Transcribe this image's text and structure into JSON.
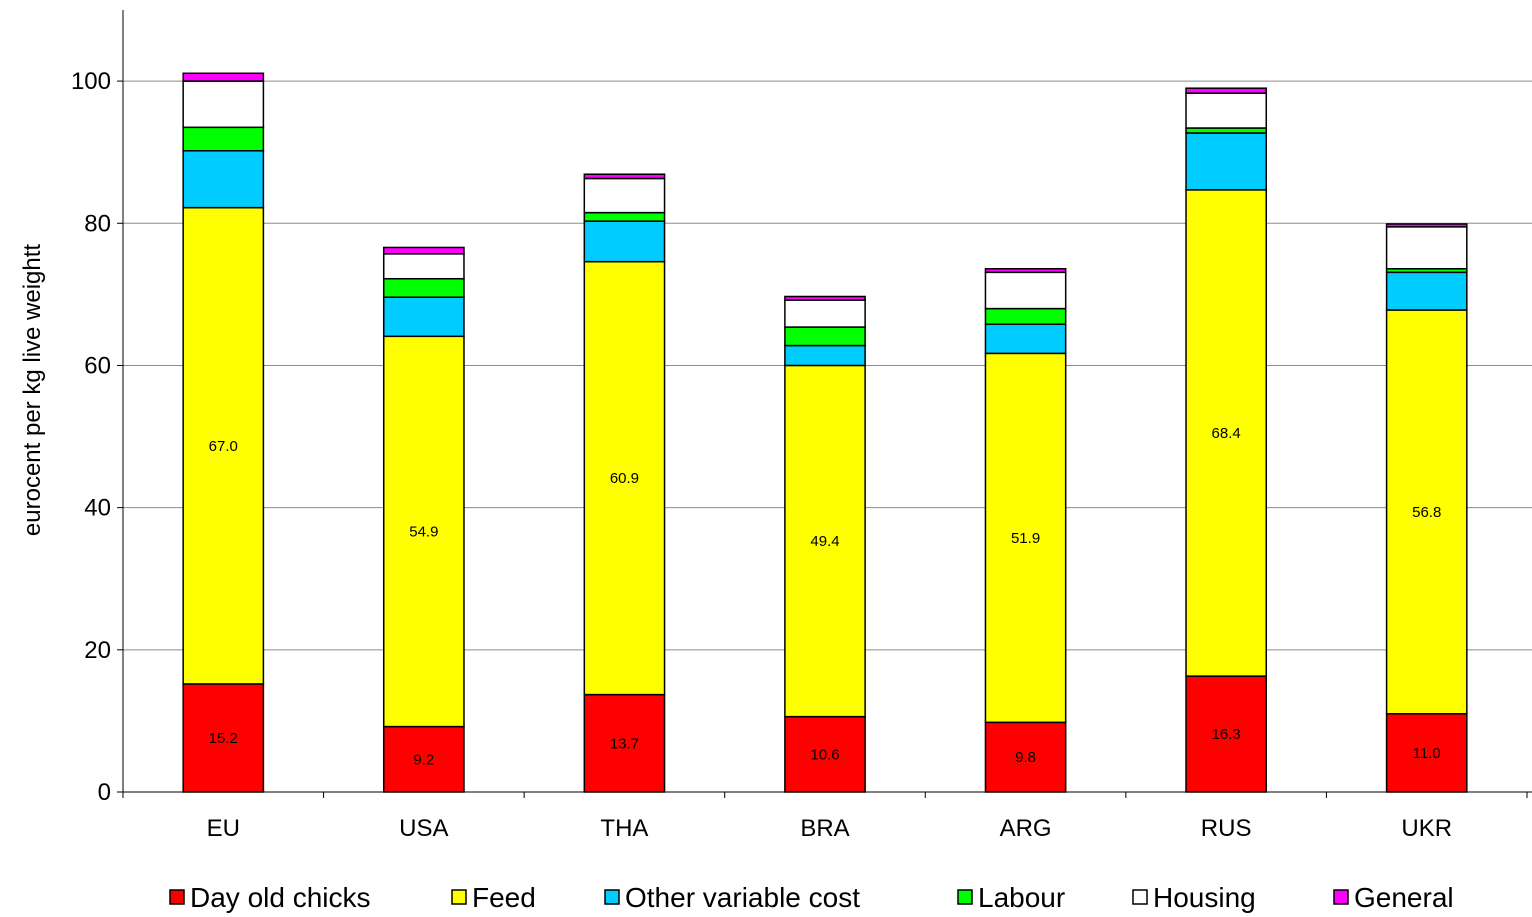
{
  "chart_data": {
    "type": "bar",
    "stacked": true,
    "categories": [
      "EU",
      "USA",
      "THA",
      "BRA",
      "ARG",
      "RUS",
      "UKR"
    ],
    "ylabel": "eurocent per kg live weightt",
    "ylim": [
      0,
      110
    ],
    "yticks": [
      0,
      20,
      40,
      60,
      80,
      100
    ],
    "grid": true,
    "legend_position": "bottom",
    "series": [
      {
        "name": "Day old chicks",
        "color": "#ff0000",
        "values": [
          15.2,
          9.2,
          13.7,
          10.6,
          9.8,
          16.3,
          11.0
        ],
        "labels": [
          "15.2",
          "9.2",
          "13.7",
          "10.6",
          "9.8",
          "16.3",
          "11.0"
        ]
      },
      {
        "name": "Feed",
        "color": "#ffff00",
        "values": [
          67.0,
          54.9,
          60.9,
          49.4,
          51.9,
          68.4,
          56.8
        ],
        "labels": [
          "67.0",
          "54.9",
          "60.9",
          "49.4",
          "51.9",
          "68.4",
          "56.8"
        ]
      },
      {
        "name": "Other variable cost",
        "color": "#00ccff",
        "values": [
          8.0,
          5.5,
          5.7,
          2.8,
          4.1,
          8.0,
          5.3
        ]
      },
      {
        "name": "Labour",
        "color": "#00ff00",
        "values": [
          3.3,
          2.6,
          1.2,
          2.6,
          2.2,
          0.7,
          0.5
        ]
      },
      {
        "name": "Housing",
        "color": "#ffffff",
        "values": [
          6.5,
          3.5,
          4.8,
          3.8,
          5.1,
          4.9,
          5.9
        ]
      },
      {
        "name": "General",
        "color": "#ff00ff",
        "values": [
          1.1,
          0.9,
          0.6,
          0.5,
          0.5,
          0.7,
          0.4
        ]
      }
    ]
  }
}
